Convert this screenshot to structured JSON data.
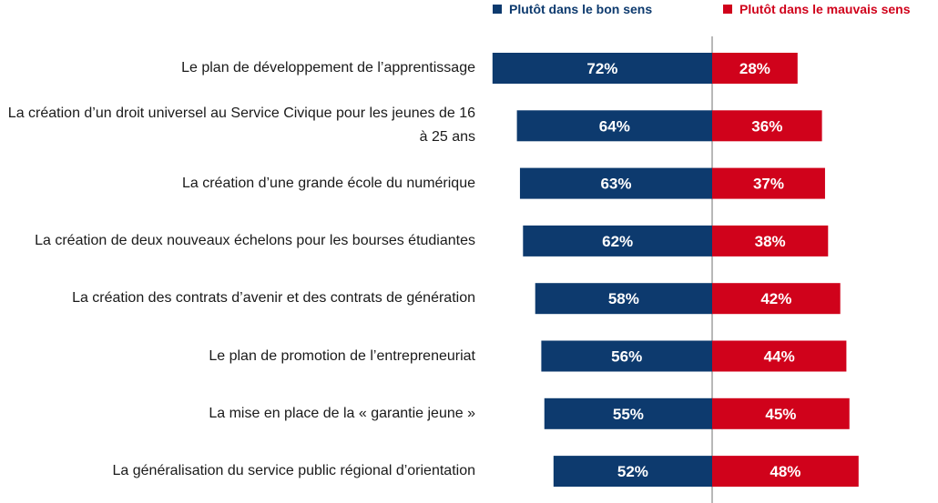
{
  "colors": {
    "positive": "#0d3a6e",
    "negative": "#d0021b",
    "axis": "#888888"
  },
  "legend": {
    "positive_label": "Plutôt dans le bon sens",
    "negative_label": "Plutôt dans le mauvais sens"
  },
  "chart_data": {
    "type": "bar",
    "orientation": "horizontal-diverging",
    "title": "",
    "categories": [
      "Le plan de développement de l’apprentissage",
      "La création d’un droit universel au Service Civique pour les jeunes de 16 à 25 ans",
      "La création d’une grande école du numérique",
      "La création de deux nouveaux échelons pour les bourses étudiantes",
      "La création des contrats d’avenir et des contrats de génération",
      "Le plan de promotion de l’entrepreneuriat",
      "La mise en place de la « garantie jeune »",
      "La généralisation du service public régional d’orientation"
    ],
    "series": [
      {
        "name": "Plutôt dans le bon sens",
        "values": [
          72,
          64,
          63,
          62,
          58,
          56,
          55,
          52
        ],
        "labels": [
          "72%",
          "64%",
          "63%",
          "62%",
          "58%",
          "56%",
          "55%",
          "52%"
        ]
      },
      {
        "name": "Plutôt dans le mauvais sens",
        "values": [
          28,
          36,
          37,
          38,
          42,
          44,
          45,
          48
        ],
        "labels": [
          "28%",
          "36%",
          "37%",
          "38%",
          "42%",
          "44%",
          "45%",
          "48%"
        ]
      }
    ],
    "unit": "%",
    "xlim": [
      0,
      100
    ]
  }
}
